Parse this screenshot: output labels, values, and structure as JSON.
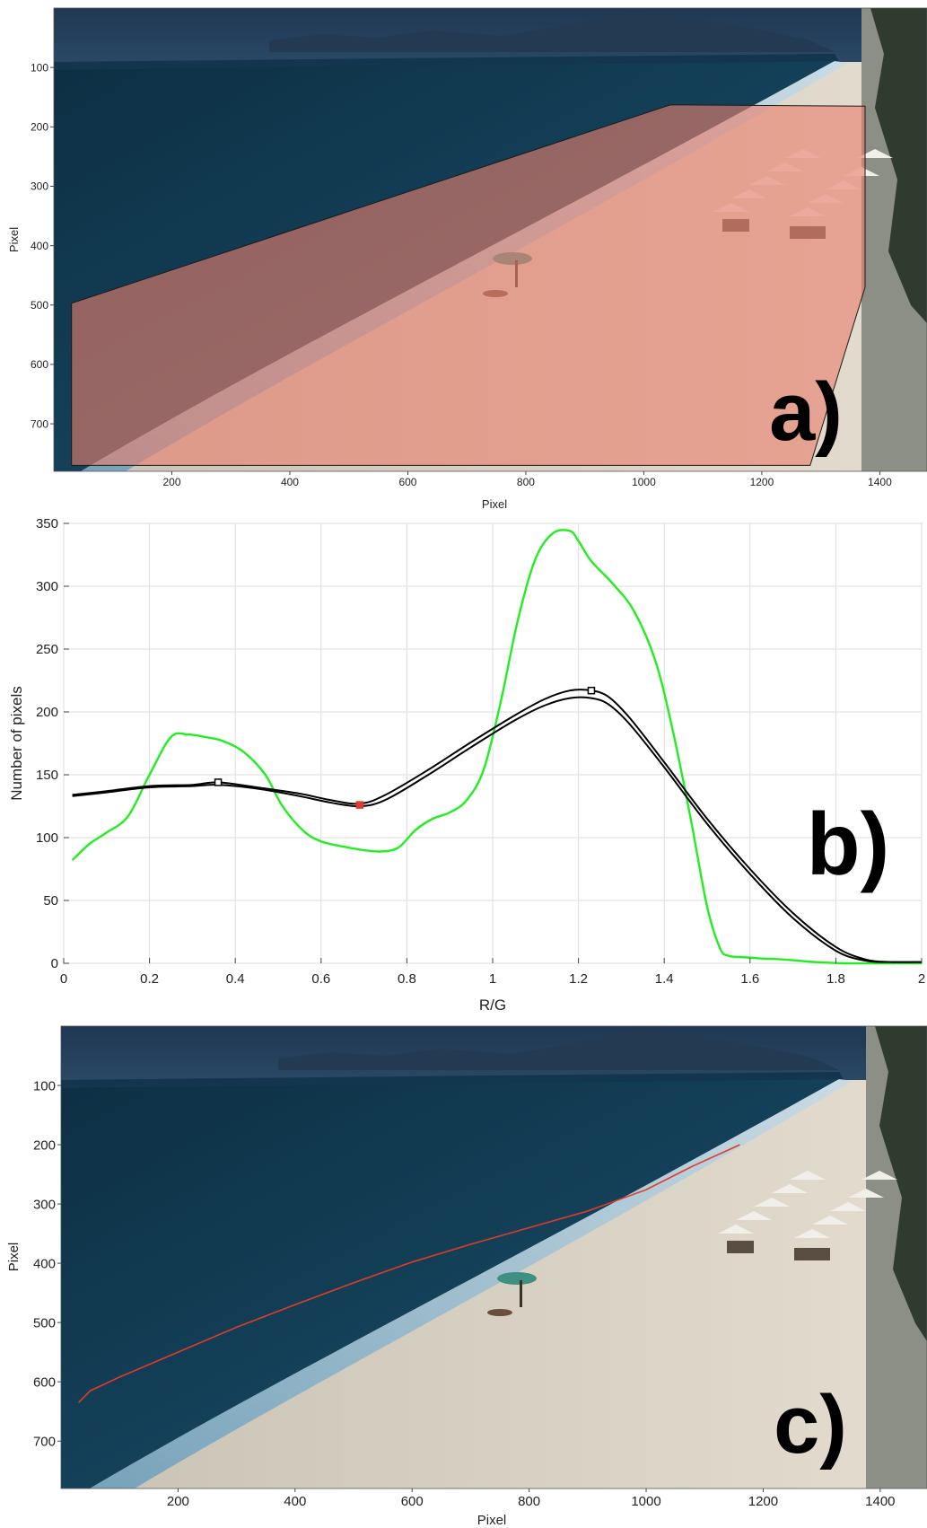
{
  "panels": {
    "a": {
      "label": "a)",
      "xlabel": "Pixel",
      "ylabel": "Pixel",
      "xticks": [
        200,
        400,
        600,
        800,
        1000,
        1200,
        1400
      ],
      "yticks": [
        100,
        200,
        300,
        400,
        500,
        600,
        700
      ],
      "xlim": [
        0,
        1480
      ],
      "ylim": [
        0,
        780
      ],
      "region_polygon": [
        [
          30,
          497
        ],
        [
          1045,
          163
        ],
        [
          1375,
          165
        ],
        [
          1375,
          470
        ],
        [
          1282,
          770
        ],
        [
          30,
          770
        ]
      ],
      "region_color": "#e8806e"
    },
    "c": {
      "label": "c)",
      "xlabel": "Pixel",
      "ylabel": "Pixel",
      "xticks": [
        200,
        400,
        600,
        800,
        1000,
        1200,
        1400
      ],
      "yticks": [
        100,
        200,
        300,
        400,
        500,
        600,
        700
      ],
      "xlim": [
        0,
        1480
      ],
      "ylim": [
        0,
        780
      ],
      "shoreline": [
        [
          30,
          635
        ],
        [
          50,
          615
        ],
        [
          100,
          592
        ],
        [
          200,
          550
        ],
        [
          300,
          508
        ],
        [
          400,
          470
        ],
        [
          500,
          433
        ],
        [
          600,
          398
        ],
        [
          700,
          368
        ],
        [
          800,
          340
        ],
        [
          900,
          312
        ],
        [
          1000,
          276
        ],
        [
          1080,
          236
        ],
        [
          1160,
          200
        ]
      ],
      "shoreline_color": "#e23a2a"
    }
  },
  "chart_data": {
    "type": "line",
    "label": "b)",
    "xlabel": "R/G",
    "ylabel": "Number of pixels",
    "xlim": [
      0,
      2
    ],
    "ylim": [
      0,
      350
    ],
    "xticks": [
      0,
      0.2,
      0.4,
      0.6,
      0.8,
      1,
      1.2,
      1.4,
      1.6,
      1.8,
      2
    ],
    "yticks": [
      0,
      50,
      100,
      150,
      200,
      250,
      300,
      350
    ],
    "grid": true,
    "series": [
      {
        "color": "#22ee22",
        "x": [
          0.02,
          0.06,
          0.1,
          0.15,
          0.2,
          0.25,
          0.29,
          0.33,
          0.37,
          0.42,
          0.47,
          0.51,
          0.56,
          0.6,
          0.65,
          0.7,
          0.74,
          0.78,
          0.82,
          0.86,
          0.9,
          0.94,
          0.98,
          1.02,
          1.06,
          1.1,
          1.14,
          1.18,
          1.2,
          1.23,
          1.28,
          1.33,
          1.38,
          1.42,
          1.46,
          1.5,
          1.53,
          1.55,
          1.58,
          1.62,
          1.68,
          1.75,
          1.82,
          1.9,
          2.0
        ],
        "y": [
          82,
          95,
          104,
          117,
          150,
          180,
          182,
          180,
          177,
          168,
          150,
          125,
          105,
          97,
          93,
          90,
          89,
          92,
          106,
          115,
          120,
          130,
          155,
          210,
          275,
          322,
          342,
          344,
          336,
          320,
          302,
          280,
          240,
          185,
          118,
          45,
          12,
          6,
          5,
          4,
          3,
          1,
          0,
          0,
          0
        ]
      },
      {
        "color": "#000000",
        "x": [
          0.02,
          0.1,
          0.2,
          0.3,
          0.36,
          0.45,
          0.55,
          0.62,
          0.69,
          0.75,
          0.85,
          0.95,
          1.05,
          1.12,
          1.18,
          1.23,
          1.27,
          1.32,
          1.4,
          1.5,
          1.6,
          1.7,
          1.8,
          1.87,
          1.93,
          2.0
        ],
        "y": [
          134,
          137,
          141,
          142,
          144,
          140,
          135,
          130,
          127,
          134,
          154,
          176,
          197,
          210,
          217,
          217,
          212,
          195,
          160,
          115,
          75,
          40,
          13,
          3,
          1,
          1
        ]
      },
      {
        "color": "#000000",
        "x": [
          0.02,
          0.1,
          0.2,
          0.3,
          0.36,
          0.45,
          0.55,
          0.62,
          0.69,
          0.75,
          0.85,
          0.95,
          1.05,
          1.12,
          1.18,
          1.23,
          1.27,
          1.32,
          1.4,
          1.5,
          1.6,
          1.7,
          1.8,
          1.87,
          1.93,
          2.0
        ],
        "y": [
          133,
          136,
          140,
          141,
          142,
          139,
          133,
          128,
          125,
          130,
          150,
          172,
          193,
          205,
          211,
          211,
          206,
          190,
          156,
          111,
          71,
          36,
          10,
          2,
          1,
          1
        ]
      }
    ],
    "markers": [
      {
        "x": 0.36,
        "y": 144,
        "color": "#000000"
      },
      {
        "x": 0.69,
        "y": 126,
        "color": "#e23a2a"
      },
      {
        "x": 1.23,
        "y": 217,
        "color": "#000000"
      }
    ]
  }
}
